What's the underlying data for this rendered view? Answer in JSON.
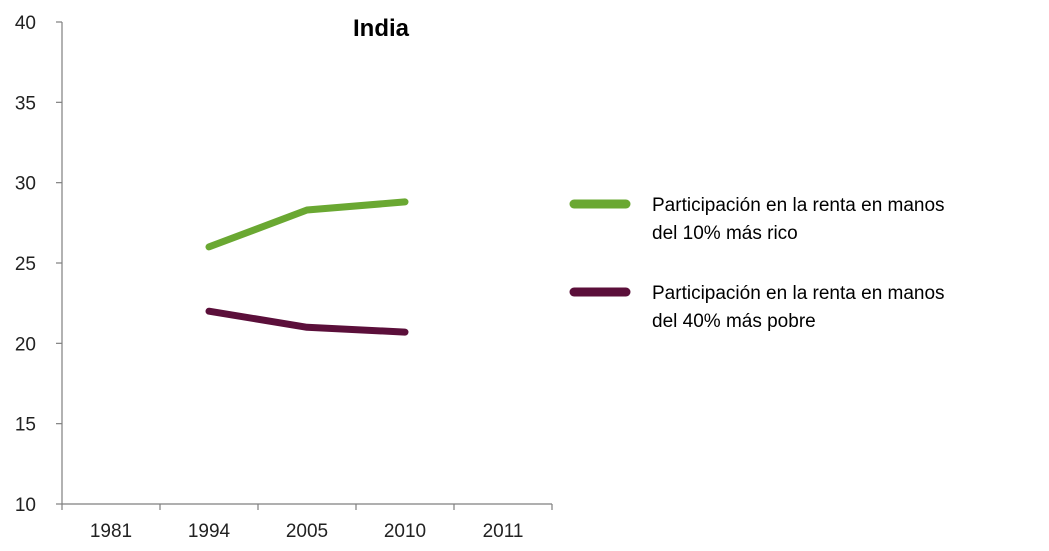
{
  "chart_data": {
    "type": "line",
    "title": "India",
    "categories": [
      "1981",
      "1994",
      "2005",
      "2010",
      "2011"
    ],
    "ylim": [
      10,
      40
    ],
    "yticks": [
      10,
      15,
      20,
      25,
      30,
      35,
      40
    ],
    "grid": false,
    "legend_position": "right",
    "series": [
      {
        "name_lines": [
          "Participación en la renta en manos",
          " del 10% más rico"
        ],
        "color": "#6aa832",
        "values": [
          null,
          26.0,
          28.3,
          28.8,
          null
        ]
      },
      {
        "name_lines": [
          "Participación en la renta en manos",
          " del 40% más pobre"
        ],
        "color": "#5b0f3a",
        "values": [
          null,
          22.0,
          21.0,
          20.7,
          null
        ]
      }
    ]
  }
}
